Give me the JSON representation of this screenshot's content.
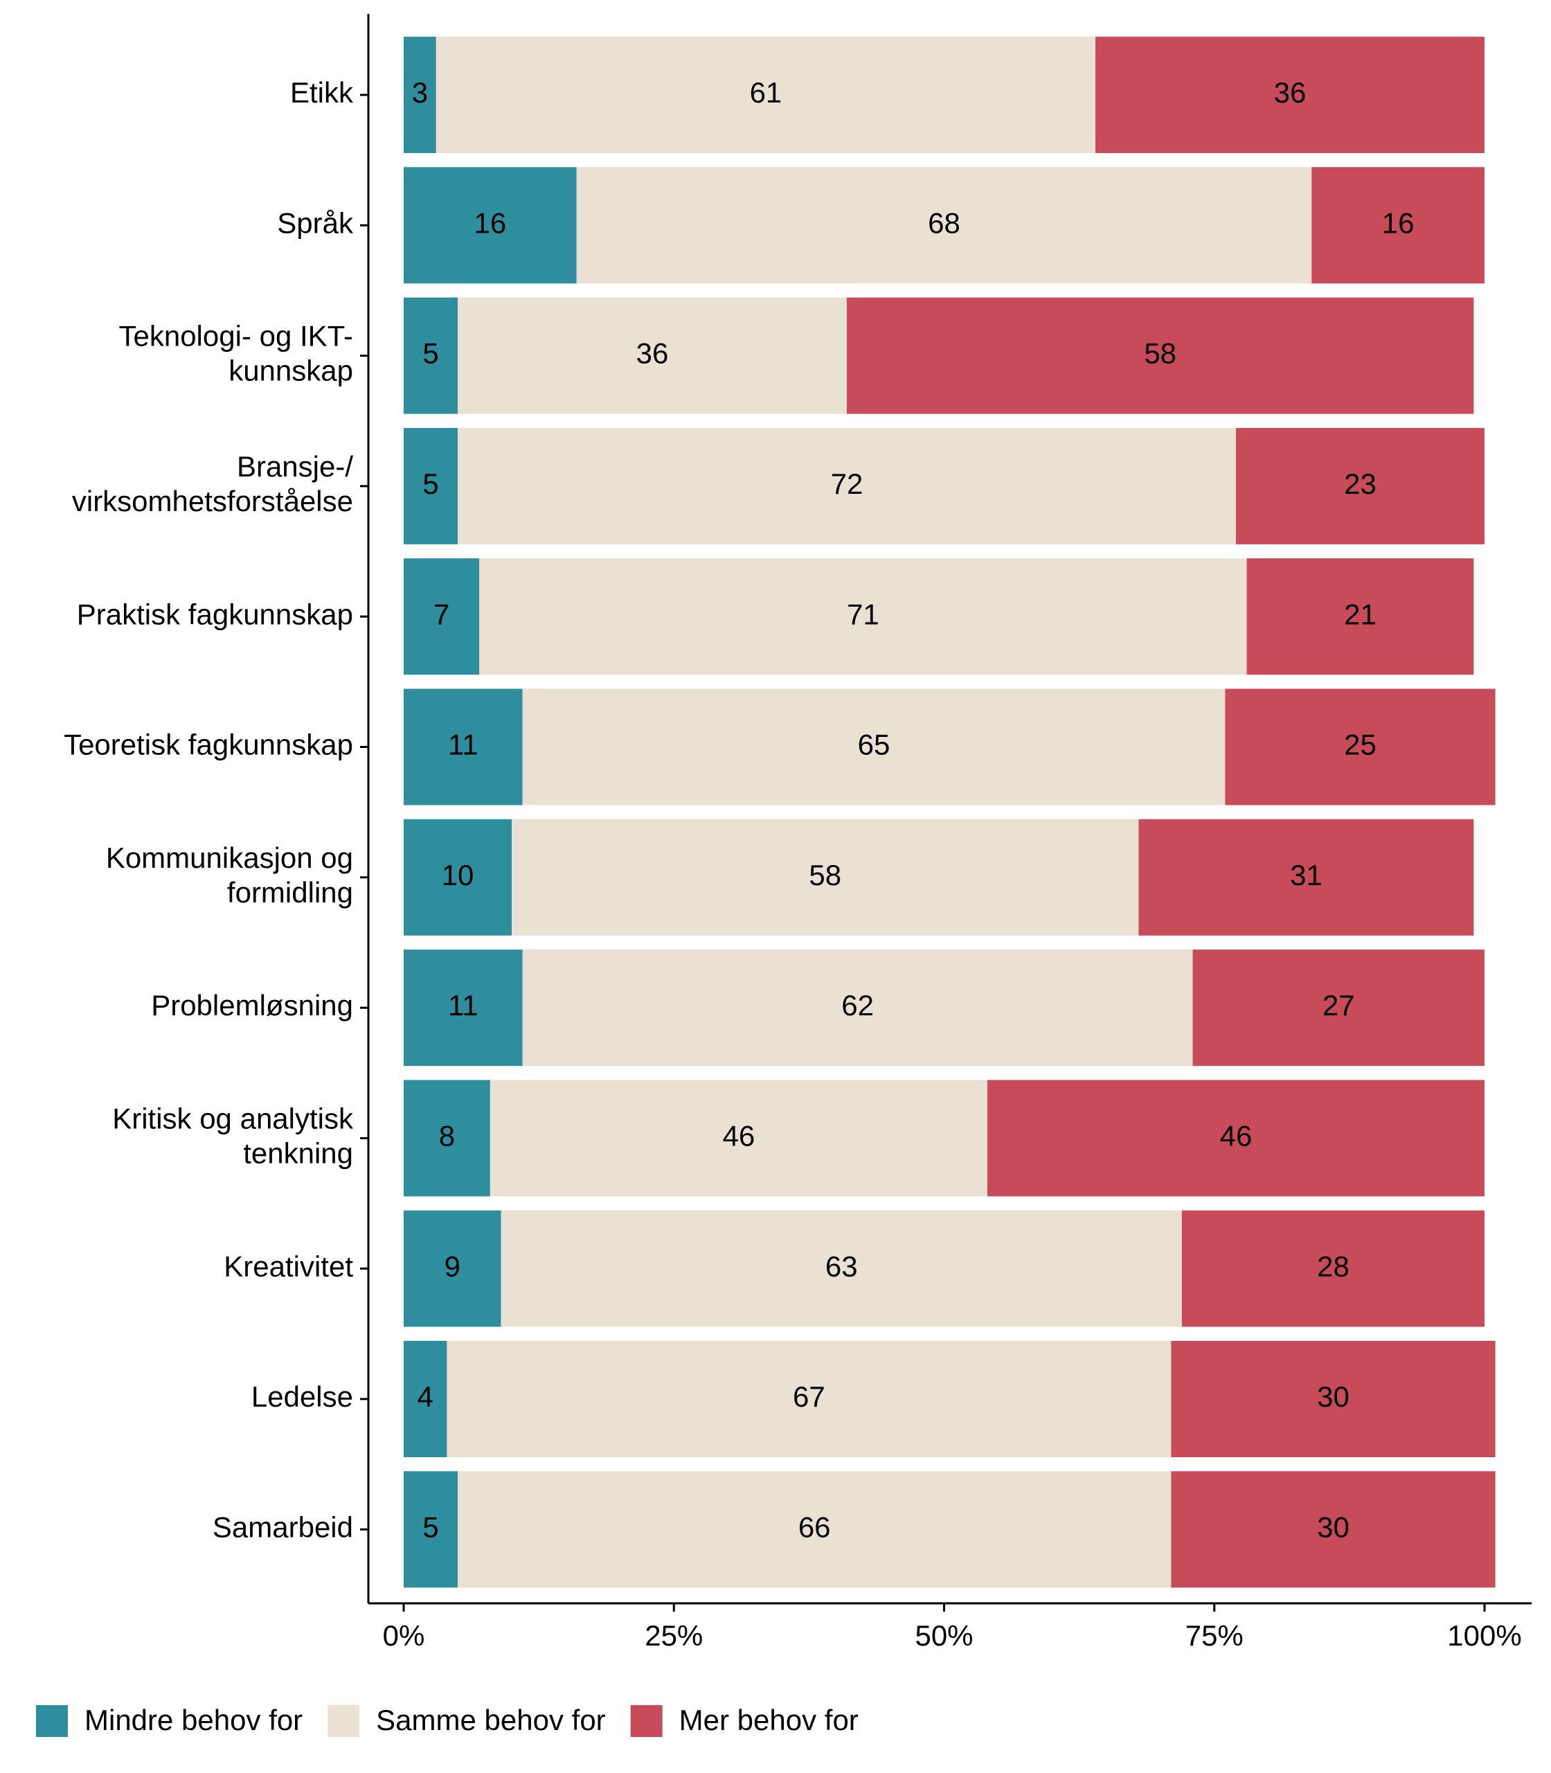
{
  "chart_data": {
    "type": "stacked-barh",
    "categories": [
      "Etikk",
      "Språk",
      "Teknologi- og IKT-\nkunnskap",
      "Bransje-/\nvirksomhetsforståelse",
      "Praktisk fagkunnskap",
      "Teoretisk fagkunnskap",
      "Kommunikasjon og\nformidling",
      "Problemløsning",
      "Kritisk og analytisk\ntenkning",
      "Kreativitet",
      "Ledelse",
      "Samarbeid"
    ],
    "series": [
      {
        "name": "Mindre behov for",
        "color": "#2e8e9e",
        "label_color": "#000000",
        "values": [
          3,
          16,
          5,
          5,
          7,
          11,
          10,
          11,
          8,
          9,
          4,
          5
        ]
      },
      {
        "name": "Samme behov for",
        "color": "#ebe1d3",
        "label_color": "#000000",
        "values": [
          61,
          68,
          36,
          72,
          71,
          65,
          58,
          62,
          46,
          63,
          67,
          66
        ]
      },
      {
        "name": "Mer behov for",
        "color": "#c84b5a",
        "label_color": "#ffffff",
        "values": [
          36,
          16,
          58,
          23,
          21,
          25,
          31,
          27,
          46,
          28,
          30,
          30
        ]
      }
    ],
    "xlim": [
      0,
      100
    ],
    "xticks": [
      {
        "value": 0,
        "label": "0%"
      },
      {
        "value": 25,
        "label": "25%"
      },
      {
        "value": 50,
        "label": "50%"
      },
      {
        "value": 75,
        "label": "75%"
      },
      {
        "value": 100,
        "label": "100%"
      }
    ],
    "legend": "bottom"
  }
}
